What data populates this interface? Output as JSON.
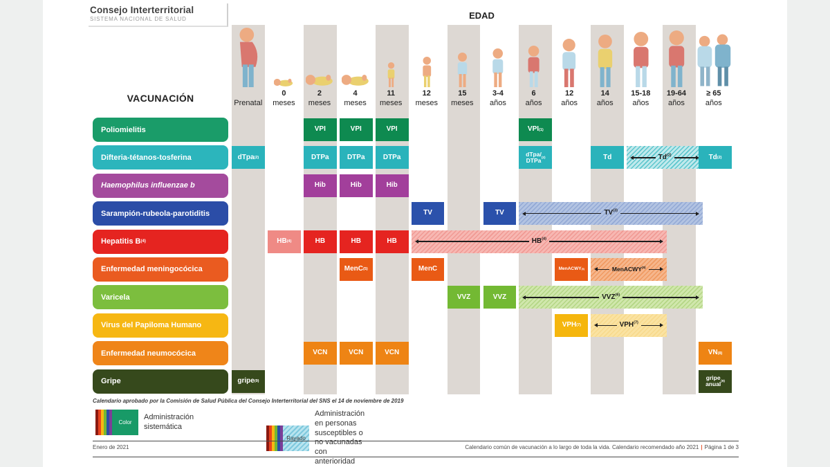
{
  "header": {
    "logo_title": "Consejo Interterritorial",
    "logo_subtitle": "SISTEMA NACIONAL DE SALUD",
    "edad_label": "EDAD",
    "vacunacion_label": "VACUNACIÓN"
  },
  "palette": {
    "stripe": "#ddd8d3",
    "page_bg": "#ffffff",
    "surround_bg": "#eef0ef",
    "rule": "#4a4a4a",
    "footer_separator_color": "#e8552c"
  },
  "chart": {
    "columns": [
      {
        "line1": "",
        "line2": "Prenatal",
        "figure": "pregnant-woman-icon",
        "shaded": true
      },
      {
        "line1": "0",
        "line2": "meses",
        "figure": "newborn-baby-icon",
        "shaded": false
      },
      {
        "line1": "2",
        "line2": "meses",
        "figure": "infant-2-months-icon",
        "shaded": true
      },
      {
        "line1": "4",
        "line2": "meses",
        "figure": "infant-4-months-icon",
        "shaded": false
      },
      {
        "line1": "11",
        "line2": "meses",
        "figure": "infant-11-months-icon",
        "shaded": true
      },
      {
        "line1": "12",
        "line2": "meses",
        "figure": "toddler-12-months-icon",
        "shaded": false
      },
      {
        "line1": "15",
        "line2": "meses",
        "figure": "toddler-15-months-icon",
        "shaded": true
      },
      {
        "line1": "3-4",
        "line2": "años",
        "figure": "child-3-4-years-icon",
        "shaded": false
      },
      {
        "line1": "6",
        "line2": "años",
        "figure": "child-6-years-icon",
        "shaded": true
      },
      {
        "line1": "12",
        "line2": "años",
        "figure": "preteen-12-years-icon",
        "shaded": false
      },
      {
        "line1": "14",
        "line2": "años",
        "figure": "teen-14-years-icon",
        "shaded": true
      },
      {
        "line1": "15-18",
        "line2": "años",
        "figure": "teen-15-18-years-icon",
        "shaded": false
      },
      {
        "line1": "19-64",
        "line2": "años",
        "figure": "adult-19-64-years-icon",
        "shaded": true
      },
      {
        "line1": "≥ 65",
        "line2": "años",
        "figure": "seniors-65-years-icon",
        "shaded": false
      }
    ],
    "rows": [
      {
        "name": "poliomielitis",
        "label": {
          "text": "Poliomielitis",
          "sup": "",
          "italic": false
        },
        "colors": {
          "label": "#1a9c69",
          "solid": "#0e8a50"
        },
        "cells": [
          {
            "col": 2,
            "span": 1,
            "type": "solid",
            "text": "VPI",
            "sup": ""
          },
          {
            "col": 3,
            "span": 1,
            "type": "solid",
            "text": "VPI",
            "sup": ""
          },
          {
            "col": 4,
            "span": 1,
            "type": "solid",
            "text": "VPI",
            "sup": ""
          },
          {
            "col": 8,
            "span": 1,
            "type": "solid",
            "text": "VPI",
            "sup": "(1)"
          }
        ]
      },
      {
        "name": "difteria-tetanos-tosferina",
        "label": {
          "text": "Difteria-tétanos-tosferina",
          "sup": "",
          "italic": false
        },
        "colors": {
          "label": "#2cb5bc",
          "solid": "#2ab3bb",
          "band_base": "#c0e9ec",
          "band_line": "#5cc6cd"
        },
        "cells": [
          {
            "col": 0,
            "span": 1,
            "type": "solid",
            "text": "dTpa",
            "sup": "(2)"
          },
          {
            "col": 2,
            "span": 1,
            "type": "solid",
            "text": "DTPa",
            "sup": ""
          },
          {
            "col": 3,
            "span": 1,
            "type": "solid",
            "text": "DTPa",
            "sup": ""
          },
          {
            "col": 4,
            "span": 1,
            "type": "solid",
            "text": "DTPa",
            "sup": ""
          },
          {
            "col": 8,
            "span": 1,
            "type": "solid",
            "text": "dTpa/\nDTPa",
            "sup": "(2)",
            "size": "sm"
          },
          {
            "col": 10,
            "span": 1,
            "type": "solid",
            "text": "Td",
            "sup": ""
          },
          {
            "col": 11,
            "span": 2,
            "type": "band",
            "text": "Td",
            "sup": "(2)"
          },
          {
            "col": 13,
            "span": 1,
            "type": "solid",
            "text": "Td",
            "sup": "(2)"
          }
        ]
      },
      {
        "name": "haemophilus-influenzae-b",
        "label": {
          "text": "Haemophilus influenzae b",
          "sup": "",
          "italic": true
        },
        "colors": {
          "label": "#a44b9d",
          "solid": "#a23f9b"
        },
        "cells": [
          {
            "col": 2,
            "span": 1,
            "type": "solid",
            "text": "Hib",
            "sup": ""
          },
          {
            "col": 3,
            "span": 1,
            "type": "solid",
            "text": "Hib",
            "sup": ""
          },
          {
            "col": 4,
            "span": 1,
            "type": "solid",
            "text": "Hib",
            "sup": ""
          }
        ]
      },
      {
        "name": "sarampion-rubeola-parotiditis",
        "label": {
          "text": "Sarampión-rubeola-parotiditis",
          "sup": "",
          "italic": false
        },
        "colors": {
          "label": "#2b4da7",
          "solid": "#2b51ab",
          "band_base": "#b2c3e2",
          "band_line": "#93a9d5"
        },
        "cells": [
          {
            "col": 5,
            "span": 1,
            "type": "solid",
            "text": "TV",
            "sup": ""
          },
          {
            "col": 7,
            "span": 1,
            "type": "solid",
            "text": "TV",
            "sup": ""
          },
          {
            "col": 8,
            "span": 5,
            "type": "band",
            "text": "TV",
            "sup": "(3)"
          }
        ]
      },
      {
        "name": "hepatitis-b",
        "label": {
          "text": "Hepatitis B",
          "sup": "(4)",
          "italic": false
        },
        "colors": {
          "label": "#e52420",
          "solid": "#e52420",
          "light": "#ef8a85",
          "band_base": "#f7b7b2",
          "band_line": "#f09a94"
        },
        "cells": [
          {
            "col": 1,
            "span": 1,
            "type": "light",
            "text": "HB",
            "sup": "(4)"
          },
          {
            "col": 2,
            "span": 1,
            "type": "solid",
            "text": "HB",
            "sup": ""
          },
          {
            "col": 3,
            "span": 1,
            "type": "solid",
            "text": "HB",
            "sup": ""
          },
          {
            "col": 4,
            "span": 1,
            "type": "solid",
            "text": "HB",
            "sup": ""
          },
          {
            "col": 5,
            "span": 7,
            "type": "band",
            "text": "HB",
            "sup": "(4)"
          }
        ]
      },
      {
        "name": "enfermedad-meningococica",
        "label": {
          "text": "Enfermedad meningocócica",
          "sup": "",
          "italic": false
        },
        "colors": {
          "label": "#ea5b20",
          "solid": "#e95a15",
          "band_base": "#f6b68c",
          "band_line": "#f09a61"
        },
        "cells": [
          {
            "col": 3,
            "span": 1,
            "type": "solid",
            "text": "MenC",
            "sup": "(5)"
          },
          {
            "col": 5,
            "span": 1,
            "type": "solid",
            "text": "MenC",
            "sup": ""
          },
          {
            "col": 9,
            "span": 1,
            "type": "solid",
            "text": "MenACWY",
            "sup": "(5)",
            "size": "xs"
          },
          {
            "col": 10,
            "span": 2,
            "type": "band",
            "text": "MenACWY",
            "sup": "(5)",
            "size": "sm"
          }
        ]
      },
      {
        "name": "varicela",
        "label": {
          "text": "Varicela",
          "sup": "",
          "italic": false
        },
        "colors": {
          "label": "#7cbe3e",
          "solid": "#73b933",
          "band_base": "#d0e7ac",
          "band_line": "#b4d685"
        },
        "cells": [
          {
            "col": 6,
            "span": 1,
            "type": "solid",
            "text": "VVZ",
            "sup": ""
          },
          {
            "col": 7,
            "span": 1,
            "type": "solid",
            "text": "VVZ",
            "sup": ""
          },
          {
            "col": 8,
            "span": 5,
            "type": "band",
            "text": "VVZ",
            "sup": "(6)"
          }
        ]
      },
      {
        "name": "virus-del-papiloma-humano",
        "label": {
          "text": "Virus del Papiloma Humano",
          "sup": "",
          "italic": false
        },
        "colors": {
          "label": "#f6b713",
          "solid": "#f5b60d",
          "band_base": "#fae3a2",
          "band_line": "#f8d98c"
        },
        "cells": [
          {
            "col": 9,
            "span": 1,
            "type": "solid",
            "text": "VPH",
            "sup": "(7)"
          },
          {
            "col": 10,
            "span": 2,
            "type": "band",
            "text": "VPH",
            "sup": "(7)"
          }
        ]
      },
      {
        "name": "enfermedad-neumococica",
        "label": {
          "text": "Enfermedad neumocócica",
          "sup": "",
          "italic": false
        },
        "colors": {
          "label": "#ef8519",
          "solid": "#ee8414"
        },
        "cells": [
          {
            "col": 2,
            "span": 1,
            "type": "solid",
            "text": "VCN",
            "sup": ""
          },
          {
            "col": 3,
            "span": 1,
            "type": "solid",
            "text": "VCN",
            "sup": ""
          },
          {
            "col": 4,
            "span": 1,
            "type": "solid",
            "text": "VCN",
            "sup": ""
          },
          {
            "col": 13,
            "span": 1,
            "type": "solid",
            "text": "VN",
            "sup": "(8)"
          }
        ]
      },
      {
        "name": "gripe",
        "label": {
          "text": "Gripe",
          "sup": "",
          "italic": false
        },
        "colors": {
          "label": "#36491c",
          "solid": "#36491c"
        },
        "cells": [
          {
            "col": 0,
            "span": 1,
            "type": "solid",
            "text": "gripe",
            "sup": "(9)"
          },
          {
            "col": 13,
            "span": 1,
            "type": "solid",
            "text": "gripe\nanual",
            "sup": "(9)",
            "size": "sm"
          }
        ]
      }
    ]
  },
  "footnote": "Calendario aprobado por la Comisión de Salud Pública del Consejo Interterritorial del SNS el 14 de noviembre de 2019",
  "legend": {
    "items": [
      {
        "swatch_label": "Color",
        "text": "Administración sistemática"
      },
      {
        "swatch_label": "Rayado",
        "text": "Administración en personas susceptibles o\nno vacunadas con anterioridad"
      }
    ]
  },
  "footer": {
    "left": "Enero de 2021",
    "right": "Calendario común de vacunación a lo largo de toda la vida. Calendario recomendado año 2021",
    "separator": "|",
    "page": "Página 1 de 3"
  }
}
